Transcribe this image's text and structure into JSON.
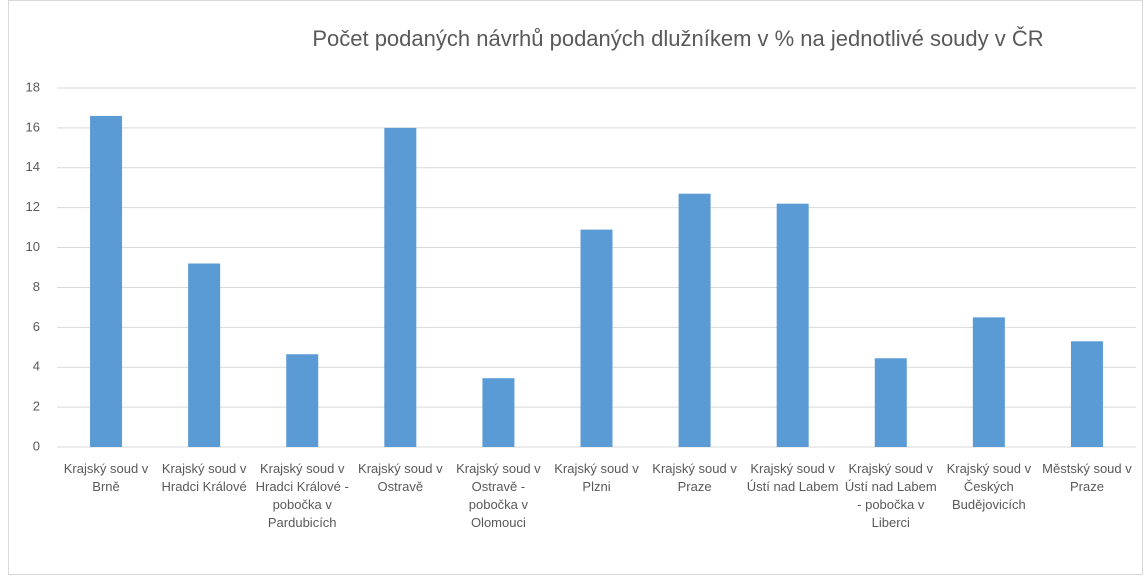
{
  "chart_data": {
    "type": "bar",
    "title": "Počet podaných návrhů podaných dlužníkem v % na jednotlivé soudy v ČR",
    "categories": [
      "Krajský soud v Brně",
      "Krajský soud v Hradci Králové",
      "Krajský soud v Hradci Králové - pobočka v Pardubicích",
      "Krajský soud v Ostravě",
      "Krajský soud v Ostravě - pobočka v Olomouci",
      "Krajský soud v Plzni",
      "Krajský soud v Praze",
      "Krajský soud v Ústí nad Labem",
      "Krajský soud v Ústí nad Labem - pobočka v Liberci",
      "Krajský soud v Českých Budějovicích",
      "Městský soud v Praze"
    ],
    "values": [
      16.6,
      9.2,
      4.65,
      16.0,
      3.45,
      10.9,
      12.7,
      12.2,
      4.45,
      6.5,
      5.3
    ],
    "color": "#5b9bd5",
    "ylim": [
      0,
      18
    ],
    "yticks": [
      0,
      2,
      4,
      6,
      8,
      10,
      12,
      14,
      16,
      18
    ],
    "grid": true
  }
}
